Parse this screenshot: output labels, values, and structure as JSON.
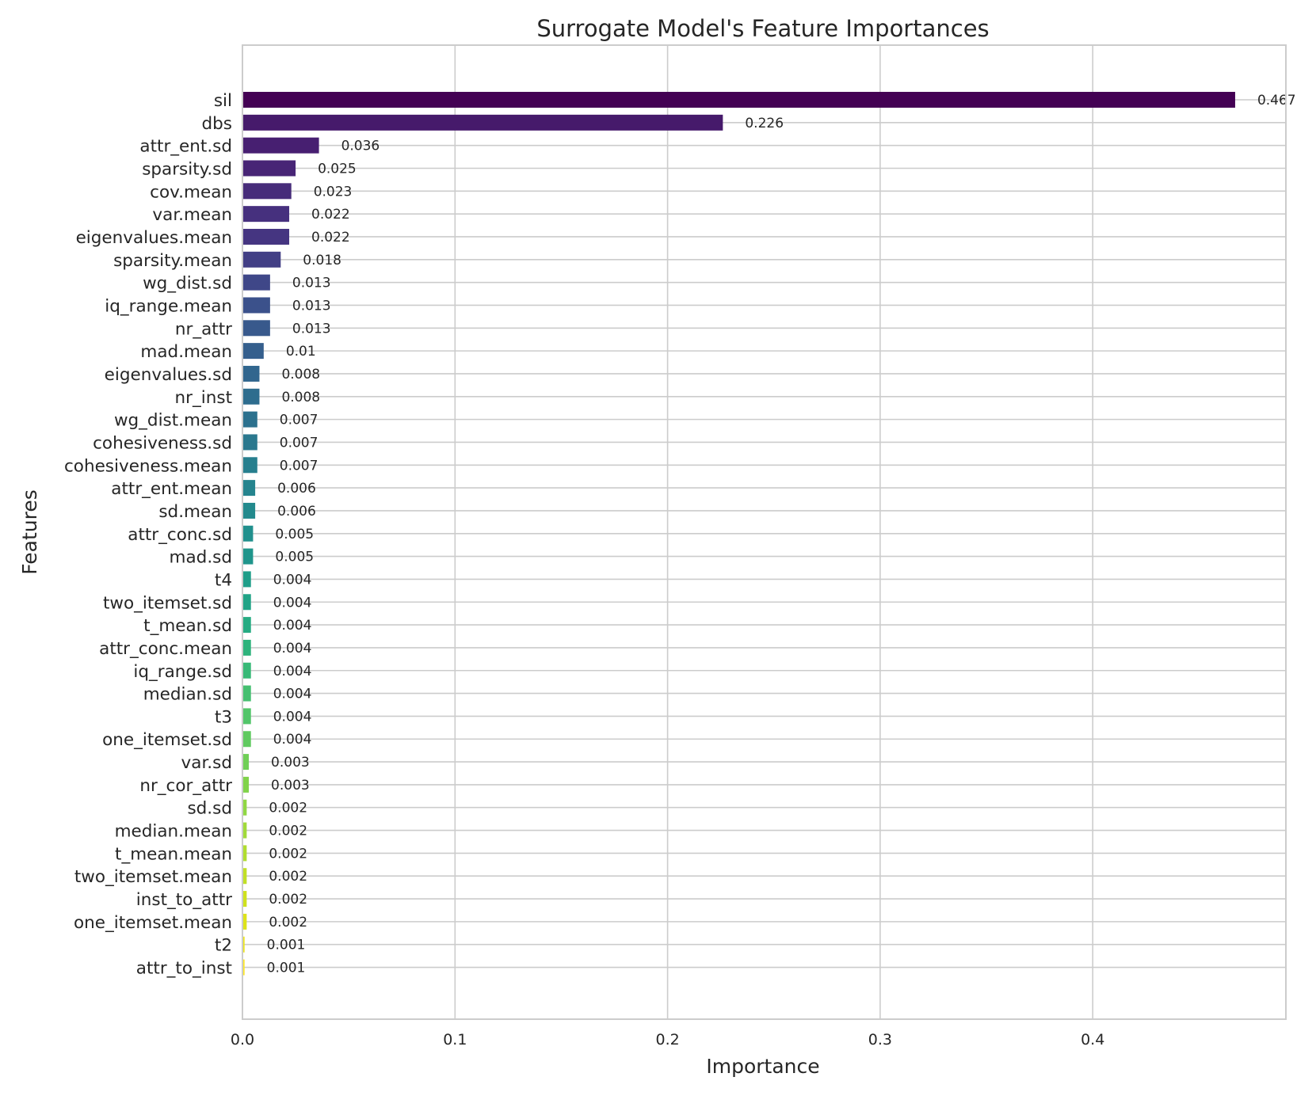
{
  "chart_data": {
    "type": "bar",
    "orientation": "horizontal",
    "title": "Surrogate Model's Feature Importances",
    "xlabel": "Importance",
    "ylabel": "Features",
    "xlim": [
      0,
      0.49
    ],
    "xticks": [
      0.0,
      0.1,
      0.2,
      0.3,
      0.4
    ],
    "xtick_labels": [
      "0.0",
      "0.1",
      "0.2",
      "0.3",
      "0.4"
    ],
    "grid": true,
    "colormap": "viridis",
    "categories": [
      "sil",
      "dbs",
      "attr_ent.sd",
      "sparsity.sd",
      "cov.mean",
      "var.mean",
      "eigenvalues.mean",
      "sparsity.mean",
      "wg_dist.sd",
      "iq_range.mean",
      "nr_attr",
      "mad.mean",
      "eigenvalues.sd",
      "nr_inst",
      "wg_dist.mean",
      "cohesiveness.sd",
      "cohesiveness.mean",
      "attr_ent.mean",
      "sd.mean",
      "attr_conc.sd",
      "mad.sd",
      "t4",
      "two_itemset.sd",
      "t_mean.sd",
      "attr_conc.mean",
      "iq_range.sd",
      "median.sd",
      "t3",
      "one_itemset.sd",
      "var.sd",
      "nr_cor_attr",
      "sd.sd",
      "median.mean",
      "t_mean.mean",
      "two_itemset.mean",
      "inst_to_attr",
      "one_itemset.mean",
      "t2",
      "attr_to_inst"
    ],
    "values": [
      0.467,
      0.226,
      0.036,
      0.025,
      0.023,
      0.022,
      0.022,
      0.018,
      0.013,
      0.013,
      0.013,
      0.01,
      0.008,
      0.008,
      0.007,
      0.007,
      0.007,
      0.006,
      0.006,
      0.005,
      0.005,
      0.004,
      0.004,
      0.004,
      0.004,
      0.004,
      0.004,
      0.004,
      0.004,
      0.003,
      0.003,
      0.002,
      0.002,
      0.002,
      0.002,
      0.002,
      0.002,
      0.001,
      0.001
    ],
    "data_labels": [
      "0.467",
      "0.226",
      "0.036",
      "0.025",
      "0.023",
      "0.022",
      "0.022",
      "0.018",
      "0.013",
      "0.013",
      "0.013",
      "0.01",
      "0.008",
      "0.008",
      "0.007",
      "0.007",
      "0.007",
      "0.006",
      "0.006",
      "0.005",
      "0.005",
      "0.004",
      "0.004",
      "0.004",
      "0.004",
      "0.004",
      "0.004",
      "0.004",
      "0.004",
      "0.003",
      "0.003",
      "0.002",
      "0.002",
      "0.002",
      "0.002",
      "0.002",
      "0.002",
      "0.001",
      "0.001"
    ],
    "colors": [
      "#440154",
      "#461a6b",
      "#471f71",
      "#482576",
      "#472c7a",
      "#46307e",
      "#453581",
      "#423f85",
      "#3f4788",
      "#3b518b",
      "#38598c",
      "#355f8d",
      "#31668e",
      "#2e6d8e",
      "#2c718e",
      "#2a788e",
      "#277f8e",
      "#25848e",
      "#238a8d",
      "#21908d",
      "#1f958b",
      "#1f9e89",
      "#20a386",
      "#25ab82",
      "#2eb37c",
      "#38b977",
      "#45bf70",
      "#52c569",
      "#60ca60",
      "#70cf57",
      "#80d34a",
      "#90d743",
      "#a0da39",
      "#b0dd2f",
      "#c0df25",
      "#cfe11c",
      "#dde318",
      "#ece51b",
      "#fde725"
    ]
  }
}
